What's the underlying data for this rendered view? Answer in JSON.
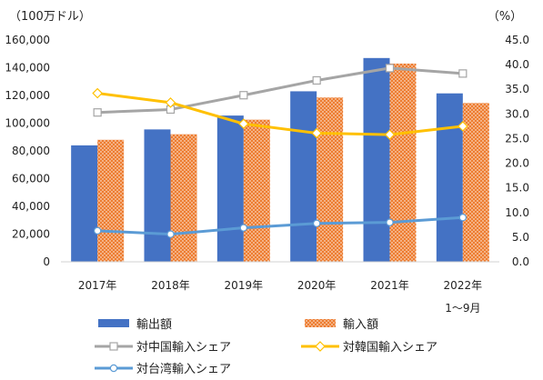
{
  "chart_data": {
    "type": "bar",
    "categories": [
      "2017年",
      "2018年",
      "2019年",
      "2020年",
      "2021年",
      "2022年"
    ],
    "category_note": "1～9月",
    "y_left": {
      "unit": "（100万ドル）",
      "min": 0,
      "max": 160000,
      "ticks": [
        "0",
        "20,000",
        "40,000",
        "60,000",
        "80,000",
        "100,000",
        "120,000",
        "140,000",
        "160,000"
      ]
    },
    "y_right": {
      "unit": "（%）",
      "min": 0,
      "max": 45,
      "ticks": [
        "0.0",
        "5.0",
        "10.0",
        "15.0",
        "20.0",
        "25.0",
        "30.0",
        "35.0",
        "40.0",
        "45.0"
      ]
    },
    "bar_series": [
      {
        "name": "輸出額",
        "color": "#4472C4",
        "values": [
          84000,
          95500,
          105500,
          123000,
          147000,
          121500
        ]
      },
      {
        "name": "輸入額",
        "color": "#ED7D31",
        "pattern": "dotted",
        "values": [
          88000,
          92000,
          102500,
          118500,
          143000,
          114500
        ]
      }
    ],
    "line_series": [
      {
        "name": "対中国輸入シェア",
        "color": "#A5A5A5",
        "marker": "square",
        "values": [
          30.3,
          30.9,
          33.8,
          36.8,
          39.3,
          38.2
        ]
      },
      {
        "name": "対韓国輸入シェア",
        "color": "#FFC000",
        "marker": "diamond",
        "values": [
          34.2,
          32.3,
          28.0,
          26.1,
          25.8,
          27.5
        ]
      },
      {
        "name": "対台湾輸入シェア",
        "color": "#5B9BD5",
        "marker": "circle",
        "values": [
          6.3,
          5.6,
          6.9,
          7.8,
          8.0,
          9.0
        ]
      }
    ],
    "legend_position": "bottom",
    "grid": false
  }
}
